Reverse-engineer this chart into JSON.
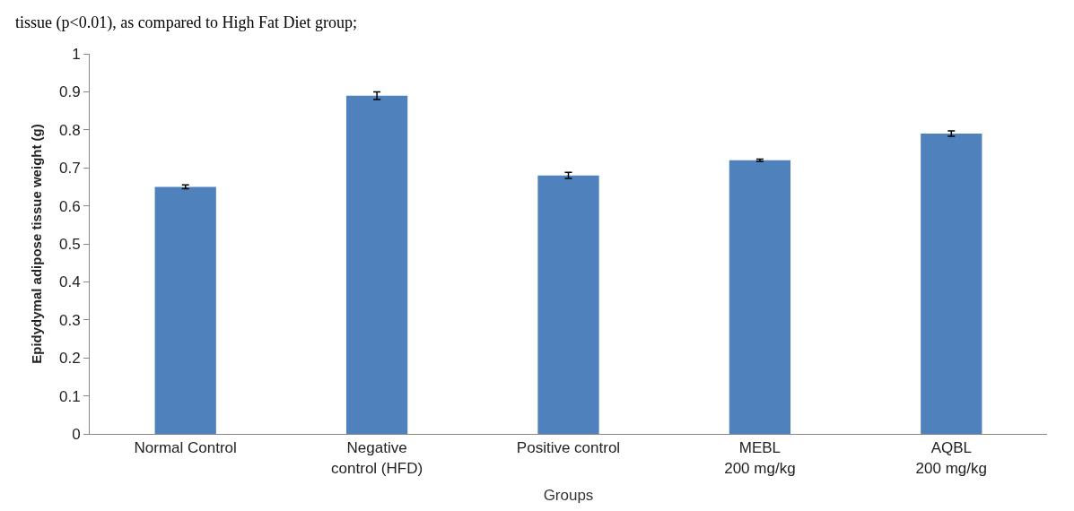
{
  "chart_data": {
    "type": "bar",
    "xlabel": "Groups",
    "ylabel": "Epidydymal adipose tissue weight (g)",
    "annotations": [
      "tissue (p<0.01), as compared to High Fat Diet group;"
    ],
    "categories": [
      "Normal Control",
      "Negative\ncontrol (HFD)",
      "Positive control",
      "MEBL\n200 mg/kg",
      "AQBL\n200 mg/kg"
    ],
    "values": [
      0.65,
      0.89,
      0.68,
      0.72,
      0.79
    ],
    "errors": [
      0.005,
      0.01,
      0.008,
      0.003,
      0.007
    ],
    "color": "#4f81bd",
    "ylim": [
      0,
      1
    ],
    "yticks": [
      0,
      0.1,
      0.2,
      0.3,
      0.4,
      0.5,
      0.6,
      0.7,
      0.8,
      0.9,
      1
    ]
  }
}
